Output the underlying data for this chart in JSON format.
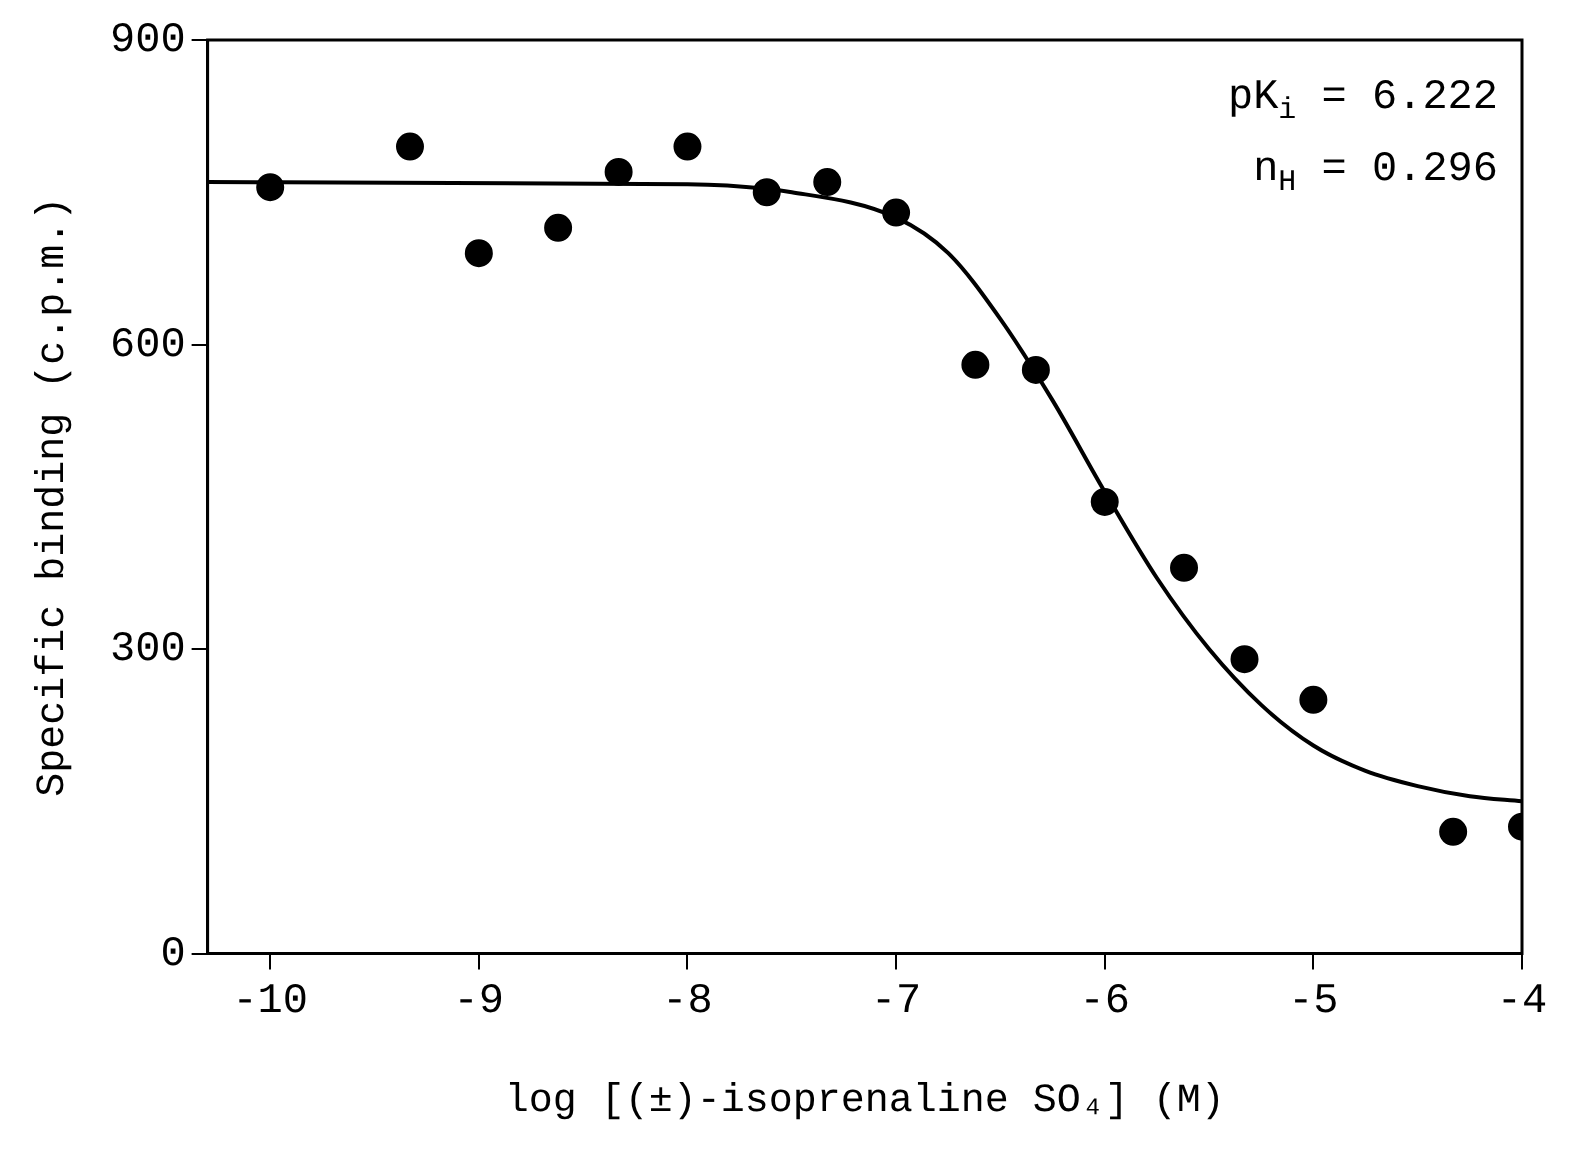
{
  "chart_data": {
    "type": "scatter",
    "xlabel": "log [(±)-isoprenaline SO₄] (M)",
    "ylabel": "Specific binding (c.p.m.)",
    "annotations": [
      "pK$_{i}$ = 6.222",
      "n$_{H}$ = 0.296"
    ],
    "xlim": [
      -10.3,
      -4
    ],
    "xticks": [
      -10,
      -9,
      -8,
      -7,
      -6,
      -5,
      -4
    ],
    "ylim": [
      0,
      900
    ],
    "yticks": [
      0,
      300,
      600,
      900
    ],
    "grid": false,
    "legend": false,
    "series": [
      {
        "color": "#000000",
        "marker": "circle",
        "x": [
          -10,
          -9.33,
          -9,
          -8.62,
          -8.33,
          -8,
          -7.62,
          -7.33,
          -7,
          -6.62,
          -6.33,
          -6,
          -5.62,
          -5.33,
          -5,
          -4.33,
          -4
        ],
        "values": [
          755,
          795,
          690,
          715,
          770,
          795,
          750,
          760,
          730,
          580,
          575,
          445,
          380,
          290,
          250,
          120,
          125
        ]
      },
      {
        "type": "line",
        "color": "#000000",
        "marker": "none",
        "line_style": "solid",
        "x": [
          -10.3,
          -8,
          -7.5,
          -7,
          -6.75,
          -6.5,
          -6.25,
          -6,
          -5.75,
          -5.5,
          -5.25,
          -5,
          -4.75,
          -4.5,
          -4.25,
          -4
        ],
        "values": [
          760,
          758,
          750,
          725,
          690,
          625,
          545,
          455,
          370,
          300,
          245,
          205,
          180,
          165,
          155,
          150
        ]
      }
    ]
  }
}
